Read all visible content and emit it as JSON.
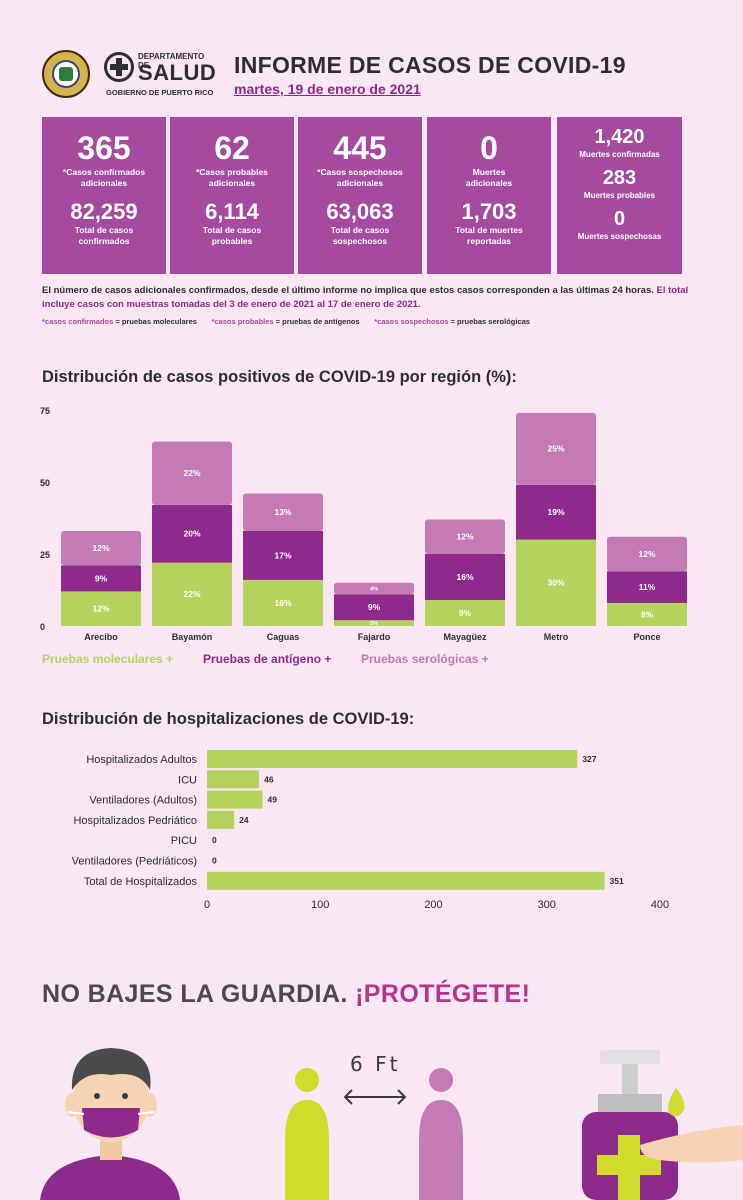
{
  "header": {
    "dept_small": "DEPARTAMENTO DE",
    "dept_big": "SALUD",
    "dept_gov": "GOBIERNO DE PUERTO RICO",
    "title": "INFORME DE CASOS DE COVID-19",
    "date": "martes, 19 de enero de 2021"
  },
  "stats": [
    {
      "value": "365",
      "label1": "*Casos confirmados",
      "label2": "adicionales",
      "total": "82,259",
      "tlabel1": "Total de casos",
      "tlabel2": "confirmados"
    },
    {
      "value": "62",
      "label1": "*Casos probables",
      "label2": "adicionales",
      "total": "6,114",
      "tlabel1": "Total de casos",
      "tlabel2": "probables"
    },
    {
      "value": "445",
      "label1": "*Casos sospechosos",
      "label2": "adicionales",
      "total": "63,063",
      "tlabel1": "Total de casos",
      "tlabel2": "sospechosos"
    },
    {
      "value": "0",
      "label1": "Muertes",
      "label2": "adicionales",
      "total": "1,703",
      "tlabel1": "Total de muertes",
      "tlabel2": "reportadas"
    }
  ],
  "deaths": [
    {
      "value": "1,420",
      "label": "Muertes confirmadas"
    },
    {
      "value": "283",
      "label": "Muertes probables"
    },
    {
      "value": "0",
      "label": "Muertes sospechosas"
    }
  ],
  "note": {
    "text1": "El número de casos adicionales confirmados, desde el último informe no implica que estos casos corresponden a las últimas 24 horas.",
    "text2": "El total incluye casos con muestras tomadas del 3 de enero de 2021 al 17 de enero de 2021.",
    "def1a": "*casos confirmados",
    "def1b": "= pruebas moleculares",
    "def2a": "*casos probables",
    "def2b": "= pruebas de antígenos",
    "def3a": "*casos sospechosos",
    "def3b": "= pruebas serológicas"
  },
  "region_title": "Distribución de casos positivos de COVID-19 por región (%):",
  "hosp_title": "Distribución de hospitalizaciones de COVID-19:",
  "legend": {
    "molecular": "Pruebas moleculares +",
    "antigen": "Pruebas de antígeno +",
    "serologic": "Pruebas serológicas +"
  },
  "colors": {
    "molecular": "#b5d35c",
    "antigen": "#8e2a8b",
    "serologic": "#c47ab5",
    "box": "#a64a9f",
    "hosp_bar": "#b5d35c"
  },
  "chart_data": [
    {
      "type": "bar",
      "stacked": true,
      "categories": [
        "Arecibo",
        "Bayamón",
        "Caguas",
        "Fajardo",
        "Mayagüez",
        "Metro",
        "Ponce"
      ],
      "series": [
        {
          "name": "Pruebas moleculares +",
          "values": [
            12,
            22,
            16,
            2,
            9,
            30,
            8
          ],
          "labels": [
            "12%",
            "22%",
            "16%",
            "2%",
            "9%",
            "30%",
            "8%"
          ]
        },
        {
          "name": "Pruebas de antígeno +",
          "values": [
            9,
            20,
            17,
            9,
            16,
            19,
            11
          ],
          "labels": [
            "9%",
            "20%",
            "17%",
            "9%",
            "16%",
            "19%",
            "11%"
          ]
        },
        {
          "name": "Pruebas serológicas +",
          "values": [
            12,
            22,
            13,
            4,
            12,
            25,
            12
          ],
          "labels": [
            "12%",
            "22%",
            "13%",
            "4%",
            "12%",
            "25%",
            "12%"
          ]
        }
      ],
      "yticks": [
        "0",
        "25",
        "50",
        "75"
      ],
      "ylim": [
        0,
        75
      ]
    },
    {
      "type": "bar",
      "orientation": "horizontal",
      "categories": [
        "Hospitalizados Adultos",
        "ICU",
        "Ventiladores (Adultos)",
        "Hospitalizados Pedriático",
        "PICU",
        "Ventiladores (Pedriáticos)",
        "Total de Hospitalizados"
      ],
      "values": [
        327,
        46,
        49,
        24,
        0,
        0,
        351
      ],
      "xticks": [
        "0",
        "100",
        "200",
        "300",
        "400"
      ],
      "xlim": [
        0,
        400
      ]
    }
  ],
  "slogan": {
    "a": "NO BAJES LA GUARDIA.",
    "b": "¡PROTÉGETE!"
  },
  "distance_label": "6 Ft"
}
